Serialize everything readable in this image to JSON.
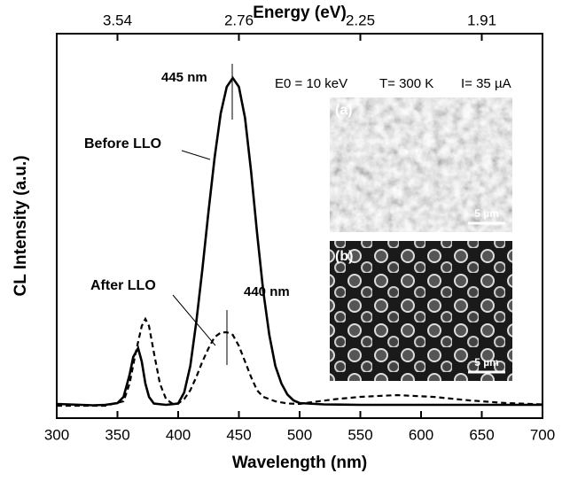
{
  "chart_data": {
    "type": "line",
    "x_label": "Wavelength (nm)",
    "y_label": "CL Intensity (a.u.)",
    "x2_label": "Energy (eV)",
    "xlim": [
      300,
      700
    ],
    "xticks": [
      300,
      350,
      400,
      450,
      500,
      550,
      600,
      650,
      700
    ],
    "x2ticks": [
      {
        "value": 350,
        "label": "3.54"
      },
      {
        "value": 450,
        "label": "2.76"
      },
      {
        "value": 550,
        "label": "2.25"
      },
      {
        "value": 650,
        "label": "1.91"
      }
    ],
    "ylim": [
      -0.28,
      8.4
    ],
    "series": [
      {
        "name": "Before LLO",
        "color": "#000000",
        "dash": "solid",
        "x": [
          300,
          310,
          320,
          330,
          340,
          350,
          355,
          360,
          363,
          367,
          370,
          373,
          376,
          380,
          390,
          400,
          405,
          410,
          415,
          420,
          425,
          430,
          435,
          440,
          445,
          450,
          455,
          460,
          465,
          470,
          475,
          480,
          485,
          490,
          495,
          500,
          520,
          550,
          600,
          650,
          700
        ],
        "values": [
          0.04,
          0.03,
          0.02,
          0.01,
          0.02,
          0.06,
          0.2,
          0.7,
          1.1,
          1.3,
          1.0,
          0.5,
          0.2,
          0.05,
          0.02,
          0.05,
          0.3,
          0.9,
          1.9,
          3.1,
          4.4,
          5.6,
          6.6,
          7.2,
          7.4,
          7.2,
          6.5,
          5.3,
          3.9,
          2.6,
          1.6,
          0.9,
          0.5,
          0.25,
          0.12,
          0.06,
          0.03,
          0.02,
          0.02,
          0.02,
          0.02
        ]
      },
      {
        "name": "After LLO",
        "color": "#000000",
        "dash": "dashed",
        "x": [
          300,
          340,
          355,
          360,
          365,
          370,
          373,
          376,
          380,
          385,
          390,
          395,
          400,
          405,
          410,
          415,
          420,
          425,
          430,
          435,
          440,
          445,
          450,
          455,
          460,
          465,
          470,
          480,
          490,
          500,
          510,
          530,
          550,
          580,
          610,
          640,
          670,
          700
        ],
        "values": [
          0,
          0,
          0.1,
          0.5,
          1.2,
          1.8,
          1.96,
          1.8,
          1.2,
          0.5,
          0.15,
          0.05,
          0.05,
          0.15,
          0.35,
          0.65,
          1.0,
          1.3,
          1.55,
          1.65,
          1.66,
          1.6,
          1.35,
          1.0,
          0.65,
          0.35,
          0.2,
          0.1,
          0.05,
          0.04,
          0.08,
          0.15,
          0.2,
          0.24,
          0.2,
          0.12,
          0.06,
          0.03
        ]
      }
    ],
    "annotations": {
      "peak_before": "445 nm",
      "peak_after": "440 nm",
      "conditions": [
        "E0 = 10 keV",
        "T= 300 K",
        "I= 35 µA"
      ]
    },
    "insets": [
      {
        "label": "(a)",
        "scale": "5 µm"
      },
      {
        "label": "(b)",
        "scale": "5 µm"
      }
    ]
  }
}
